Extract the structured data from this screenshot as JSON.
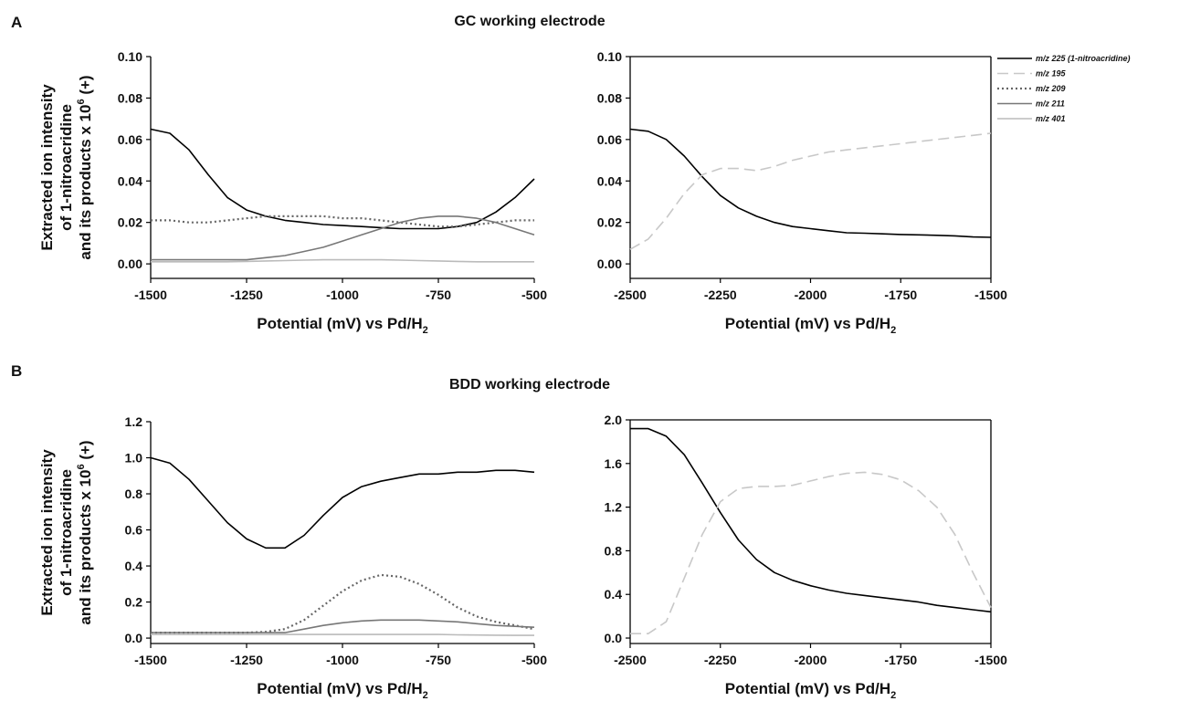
{
  "panels": [
    {
      "label": "A",
      "title": "GC working electrode"
    },
    {
      "label": "B",
      "title": "BDD working electrode"
    }
  ],
  "legend": [
    {
      "name": "m/z 225 (1-nitroacridine)",
      "color": "#000000",
      "dash": "solid"
    },
    {
      "name": "m/z 195",
      "color": "#c8c8c8",
      "dash": "dashed"
    },
    {
      "name": "m/z 209",
      "color": "#666666",
      "dash": "dotted"
    },
    {
      "name": "m/z 211",
      "color": "#777777",
      "dash": "solid"
    },
    {
      "name": "m/z 401",
      "color": "#bbbbbb",
      "dash": "solid"
    }
  ],
  "chart_data": [
    {
      "type": "line",
      "box": false,
      "y_label": [
        "Extracted ion intensity",
        "of 1-nitroacridine",
        "and its products x 10"
      ],
      "y_label_sup": "6",
      "y_label_end": " (+)",
      "x_label": "Potential (mV) vs Pd/H",
      "x_label_sub": "2",
      "x": [
        -1500,
        -1450,
        -1400,
        -1350,
        -1300,
        -1250,
        -1200,
        -1150,
        -1100,
        -1050,
        -1000,
        -950,
        -900,
        -850,
        -800,
        -750,
        -700,
        -650,
        -600,
        -550,
        -500
      ],
      "xlim": [
        -1500,
        -500
      ],
      "xticks": [
        -1500,
        -1250,
        -1000,
        -750,
        -500
      ],
      "ylim": [
        -0.007,
        0.1
      ],
      "yticks": [
        {
          "value": 0,
          "label": "0.00"
        },
        {
          "value": 0.02,
          "label": "0.02"
        },
        {
          "value": 0.04,
          "label": "0.04"
        },
        {
          "value": 0.06,
          "label": "0.06"
        },
        {
          "value": 0.08,
          "label": "0.08"
        },
        {
          "value": 0.1,
          "label": "0.10"
        }
      ],
      "series": [
        {
          "color": "#000000",
          "dash": "solid",
          "values": [
            0.065,
            0.063,
            0.055,
            0.043,
            0.032,
            0.026,
            0.023,
            0.021,
            0.02,
            0.019,
            0.0185,
            0.018,
            0.0175,
            0.017,
            0.017,
            0.017,
            0.018,
            0.02,
            0.025,
            0.032,
            0.041
          ]
        },
        {
          "color": "#666666",
          "dash": "dotted",
          "values": [
            0.021,
            0.021,
            0.02,
            0.02,
            0.021,
            0.022,
            0.023,
            0.023,
            0.023,
            0.023,
            0.022,
            0.022,
            0.021,
            0.02,
            0.019,
            0.018,
            0.018,
            0.019,
            0.02,
            0.021,
            0.021
          ]
        },
        {
          "color": "#777777",
          "dash": "solid",
          "values": [
            0.002,
            0.002,
            0.002,
            0.002,
            0.002,
            0.002,
            0.003,
            0.004,
            0.006,
            0.008,
            0.011,
            0.014,
            0.017,
            0.02,
            0.022,
            0.023,
            0.023,
            0.022,
            0.02,
            0.017,
            0.014
          ]
        },
        {
          "color": "#bbbbbb",
          "dash": "solid",
          "values": [
            0.001,
            0.001,
            0.001,
            0.001,
            0.001,
            0.0012,
            0.0014,
            0.0016,
            0.0018,
            0.002,
            0.002,
            0.002,
            0.002,
            0.0018,
            0.0016,
            0.0014,
            0.0012,
            0.001,
            0.001,
            0.001,
            0.001
          ]
        }
      ]
    },
    {
      "type": "line",
      "box": true,
      "x_label": "Potential (mV) vs Pd/H",
      "x_label_sub": "2",
      "x": [
        -2500,
        -2450,
        -2400,
        -2350,
        -2300,
        -2250,
        -2200,
        -2150,
        -2100,
        -2050,
        -2000,
        -1950,
        -1900,
        -1850,
        -1800,
        -1750,
        -1700,
        -1650,
        -1600,
        -1550,
        -1500
      ],
      "xlim": [
        -2500,
        -1500
      ],
      "xticks": [
        -2500,
        -2250,
        -2000,
        -1750,
        -1500
      ],
      "ylim": [
        -0.007,
        0.1
      ],
      "yticks": [
        {
          "value": 0,
          "label": "0.00"
        },
        {
          "value": 0.02,
          "label": "0.02"
        },
        {
          "value": 0.04,
          "label": "0.04"
        },
        {
          "value": 0.06,
          "label": "0.06"
        },
        {
          "value": 0.08,
          "label": "0.08"
        },
        {
          "value": 0.1,
          "label": "0.10"
        }
      ],
      "series": [
        {
          "color": "#000000",
          "dash": "solid",
          "values": [
            0.065,
            0.064,
            0.06,
            0.052,
            0.042,
            0.033,
            0.027,
            0.023,
            0.02,
            0.018,
            0.017,
            0.016,
            0.015,
            0.0148,
            0.0145,
            0.0142,
            0.014,
            0.0138,
            0.0135,
            0.013,
            0.0128
          ]
        },
        {
          "color": "#c8c8c8",
          "dash": "dashed",
          "values": [
            0.007,
            0.012,
            0.022,
            0.034,
            0.043,
            0.046,
            0.046,
            0.045,
            0.047,
            0.05,
            0.052,
            0.054,
            0.055,
            0.056,
            0.057,
            0.058,
            0.059,
            0.06,
            0.061,
            0.062,
            0.063
          ]
        }
      ]
    },
    {
      "type": "line",
      "box": false,
      "y_label": [
        "Extracted ion intensity",
        "of 1-nitroacridine",
        "and its products x 10"
      ],
      "y_label_sup": "6",
      "y_label_end": " (+)",
      "x_label": "Potential (mV) vs Pd/H",
      "x_label_sub": "2",
      "x": [
        -1500,
        -1450,
        -1400,
        -1350,
        -1300,
        -1250,
        -1200,
        -1150,
        -1100,
        -1050,
        -1000,
        -950,
        -900,
        -850,
        -800,
        -750,
        -700,
        -650,
        -600,
        -550,
        -500
      ],
      "xlim": [
        -1500,
        -500
      ],
      "xticks": [
        -1500,
        -1250,
        -1000,
        -750,
        -500
      ],
      "ylim": [
        -0.03,
        1.2
      ],
      "yticks": [
        {
          "value": 0,
          "label": "0.0"
        },
        {
          "value": 0.2,
          "label": "0.2"
        },
        {
          "value": 0.4,
          "label": "0.4"
        },
        {
          "value": 0.6,
          "label": "0.6"
        },
        {
          "value": 0.8,
          "label": "0.8"
        },
        {
          "value": 1,
          "label": "1.0"
        },
        {
          "value": 1.2,
          "label": "1.2"
        }
      ],
      "series": [
        {
          "color": "#000000",
          "dash": "solid",
          "values": [
            1.0,
            0.97,
            0.88,
            0.76,
            0.64,
            0.55,
            0.5,
            0.5,
            0.57,
            0.68,
            0.78,
            0.84,
            0.87,
            0.89,
            0.91,
            0.91,
            0.92,
            0.92,
            0.93,
            0.93,
            0.92
          ]
        },
        {
          "color": "#666666",
          "dash": "dotted",
          "values": [
            0.03,
            0.03,
            0.03,
            0.03,
            0.03,
            0.03,
            0.035,
            0.05,
            0.1,
            0.18,
            0.26,
            0.32,
            0.35,
            0.34,
            0.3,
            0.24,
            0.17,
            0.12,
            0.09,
            0.07,
            0.05
          ]
        },
        {
          "color": "#777777",
          "dash": "solid",
          "values": [
            0.03,
            0.03,
            0.03,
            0.03,
            0.03,
            0.03,
            0.03,
            0.03,
            0.05,
            0.07,
            0.085,
            0.095,
            0.1,
            0.1,
            0.1,
            0.095,
            0.09,
            0.08,
            0.07,
            0.065,
            0.06
          ]
        },
        {
          "color": "#bbbbbb",
          "dash": "solid",
          "values": [
            0.02,
            0.02,
            0.02,
            0.02,
            0.02,
            0.02,
            0.02,
            0.02,
            0.02,
            0.02,
            0.02,
            0.02,
            0.02,
            0.02,
            0.02,
            0.02,
            0.018,
            0.017,
            0.016,
            0.015,
            0.015
          ]
        }
      ]
    },
    {
      "type": "line",
      "box": true,
      "x_label": "Potential (mV) vs Pd/H",
      "x_label_sub": "2",
      "x": [
        -2500,
        -2450,
        -2400,
        -2350,
        -2300,
        -2250,
        -2200,
        -2150,
        -2100,
        -2050,
        -2000,
        -1950,
        -1900,
        -1850,
        -1800,
        -1750,
        -1700,
        -1650,
        -1600,
        -1550,
        -1500
      ],
      "xlim": [
        -2500,
        -1500
      ],
      "xticks": [
        -2500,
        -2250,
        -2000,
        -1750,
        -1500
      ],
      "ylim": [
        -0.05,
        2.0
      ],
      "yticks": [
        {
          "value": 0,
          "label": "0.0"
        },
        {
          "value": 0.4,
          "label": "0.4"
        },
        {
          "value": 0.8,
          "label": "0.8"
        },
        {
          "value": 1.2,
          "label": "1.2"
        },
        {
          "value": 1.6,
          "label": "1.6"
        },
        {
          "value": 2,
          "label": "2.0"
        }
      ],
      "series": [
        {
          "color": "#000000",
          "dash": "solid",
          "values": [
            1.92,
            1.92,
            1.85,
            1.68,
            1.42,
            1.15,
            0.9,
            0.72,
            0.6,
            0.53,
            0.48,
            0.44,
            0.41,
            0.39,
            0.37,
            0.35,
            0.33,
            0.3,
            0.28,
            0.26,
            0.24
          ]
        },
        {
          "color": "#c8c8c8",
          "dash": "dashed",
          "values": [
            0.04,
            0.04,
            0.15,
            0.55,
            0.95,
            1.25,
            1.37,
            1.39,
            1.39,
            1.4,
            1.44,
            1.48,
            1.51,
            1.52,
            1.5,
            1.45,
            1.35,
            1.2,
            0.95,
            0.6,
            0.28
          ]
        }
      ]
    }
  ]
}
